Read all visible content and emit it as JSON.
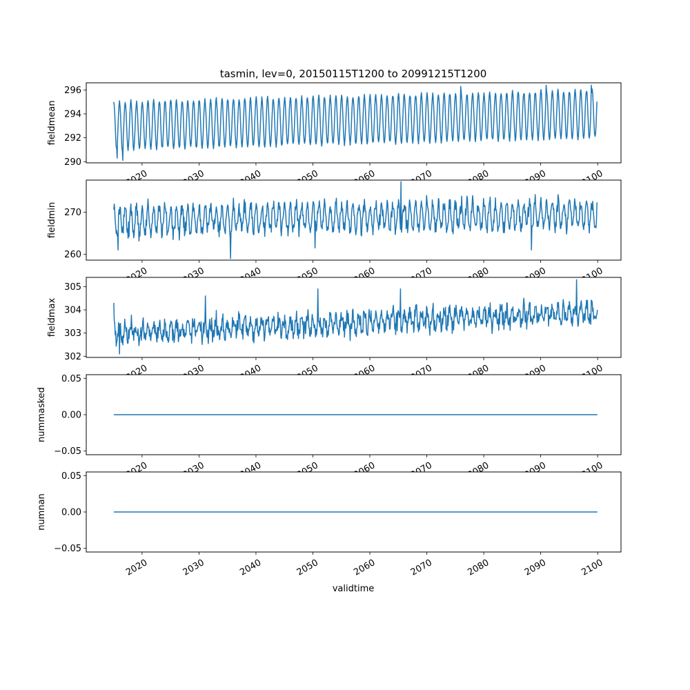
{
  "figure": {
    "title": "tasmin, lev=0, 20150115T1200 to 20991215T1200",
    "xlabel": "validtime",
    "line_color": "#1f77b4"
  },
  "chart_data": [
    {
      "type": "line",
      "ylabel": "fieldmean",
      "xlim": [
        2010.2,
        2104.1
      ],
      "ylim": [
        289.9,
        296.6
      ],
      "x_ticks": [
        "2020",
        "2030",
        "2040",
        "2050",
        "2060",
        "2070",
        "2080",
        "2090",
        "2100"
      ],
      "y_ticks": [
        "290",
        "292",
        "294",
        "296"
      ],
      "x_range": [
        2015.04,
        2099.96
      ],
      "pattern": "seasonal",
      "mean_start": 293.0,
      "mean_end": 294.0,
      "amplitude": 2.0,
      "first": 295.0,
      "last": 295.0,
      "points": [
        [
          2015.6,
          290.3
        ],
        [
          2016.6,
          290.1
        ],
        [
          2076.0,
          296.3
        ],
        [
          2091.0,
          296.4
        ],
        [
          2098.9,
          296.4
        ]
      ]
    },
    {
      "type": "line",
      "ylabel": "fieldmin",
      "xlim": [
        2010.2,
        2104.1
      ],
      "ylim": [
        258.6,
        277.6
      ],
      "x_ticks": [
        "2020",
        "2030",
        "2040",
        "2050",
        "2060",
        "2070",
        "2080",
        "2090",
        "2100"
      ],
      "y_ticks": [
        "260",
        "270"
      ],
      "x_range": [
        2015.04,
        2099.96
      ],
      "pattern": "noisy-seasonal",
      "mean_start": 268.0,
      "mean_end": 269.5,
      "amplitude": 3.0,
      "noise": 1.6,
      "first": 270.6,
      "last": 272.3,
      "points": [
        [
          2015.8,
          261.0
        ],
        [
          2035.5,
          259.0
        ],
        [
          2050.4,
          261.5
        ],
        [
          2065.5,
          277.2
        ],
        [
          2088.4,
          261.0
        ]
      ]
    },
    {
      "type": "line",
      "ylabel": "fieldmax",
      "xlim": [
        2010.2,
        2104.1
      ],
      "ylim": [
        301.95,
        305.4
      ],
      "x_ticks": [
        "2020",
        "2030",
        "2040",
        "2050",
        "2060",
        "2070",
        "2080",
        "2090",
        "2100"
      ],
      "y_ticks": [
        "302",
        "303",
        "304",
        "305"
      ],
      "x_range": [
        2015.04,
        2099.96
      ],
      "pattern": "noisy",
      "mean_start": 303.0,
      "mean_end": 303.9,
      "amplitude": 0.3,
      "noise": 0.35,
      "first": 304.3,
      "last": 304.0,
      "points": [
        [
          2016.0,
          302.1
        ],
        [
          2031.1,
          304.6
        ],
        [
          2050.9,
          304.9
        ],
        [
          2065.4,
          304.9
        ],
        [
          2096.3,
          305.3
        ]
      ]
    },
    {
      "type": "line",
      "ylabel": "nummasked",
      "xlim": [
        2010.2,
        2104.1
      ],
      "ylim": [
        -0.055,
        0.055
      ],
      "x_ticks": [
        "2020",
        "2030",
        "2040",
        "2050",
        "2060",
        "2070",
        "2080",
        "2090",
        "2100"
      ],
      "y_ticks": [
        "0.05",
        "0.00",
        "−0.05"
      ],
      "x_range": [
        2015.04,
        2099.96
      ],
      "pattern": "constant",
      "value": 0.0
    },
    {
      "type": "line",
      "ylabel": "numnan",
      "xlim": [
        2010.2,
        2104.1
      ],
      "ylim": [
        -0.055,
        0.055
      ],
      "x_ticks": [
        "2020",
        "2030",
        "2040",
        "2050",
        "2060",
        "2070",
        "2080",
        "2090",
        "2100"
      ],
      "y_ticks": [
        "0.05",
        "0.00",
        "−0.05"
      ],
      "x_range": [
        2015.04,
        2099.96
      ],
      "pattern": "constant",
      "value": 0.0
    }
  ]
}
